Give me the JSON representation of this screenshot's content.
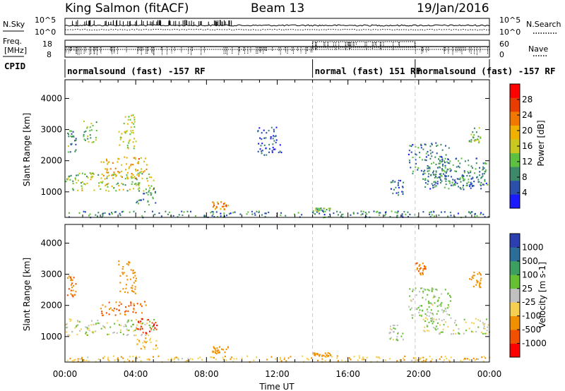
{
  "header": {
    "station": "King Salmon (fitACF)",
    "beam": "Beam 13",
    "date": "19/Jan/2016"
  },
  "noise_panel": {
    "left_label": "N.Sky",
    "right_label": "N.Search",
    "left_ticks": [
      "10^5",
      "10^0"
    ],
    "right_ticks": [
      "10^5",
      "10^0"
    ]
  },
  "freq_panel": {
    "left_label_1": "Freq.",
    "left_label_2": "[MHz]",
    "right_label": "Nave",
    "left_ticks": [
      "18",
      "8"
    ],
    "right_ticks": [
      "60",
      "0"
    ]
  },
  "cpid_panel": {
    "label": "CPID",
    "segments": [
      {
        "text": "normalsound (fast) -157 RF",
        "start_hour": 0,
        "end_hour": 14
      },
      {
        "text": "normal (fast) 151 RF",
        "start_hour": 14,
        "end_hour": 19.8
      },
      {
        "text": "normalsound (fast) -157 RF",
        "start_hour": 19.8,
        "end_hour": 24
      }
    ]
  },
  "colors": {
    "power": [
      "#1a1aff",
      "#2b50aa",
      "#3d8a6a",
      "#5dc040",
      "#c8c820",
      "#f0b000",
      "#f07800",
      "#e83c00",
      "#ff0000"
    ],
    "velocity": [
      "#2b3fb0",
      "#2b6e9a",
      "#3da060",
      "#66c033",
      "#c0c0c0",
      "#f5d050",
      "#f09000",
      "#f05000",
      "#ff0000"
    ]
  },
  "chart_data": [
    {
      "type": "heatmap",
      "name": "power",
      "ylabel": "Slant Range [km]",
      "xlabel": "",
      "x_ticks": [
        "00:00",
        "04:00",
        "08:00",
        "12:00",
        "16:00",
        "20:00",
        "00:00"
      ],
      "y_ticks": [
        1000,
        2000,
        3000,
        4000
      ],
      "xlim_hours": [
        0,
        24
      ],
      "ylim": [
        180,
        4600
      ],
      "colorbar_label": "Power [dB]",
      "colorbar_ticks": [
        4,
        8,
        12,
        16,
        20,
        24,
        28
      ],
      "colorbar_range": [
        0,
        32
      ],
      "regions": [
        {
          "t0": 0.0,
          "t1": 5.0,
          "r0": 1050,
          "r1": 1650,
          "v": 14
        },
        {
          "t0": 2.0,
          "t1": 4.6,
          "r0": 1450,
          "r1": 2150,
          "v": 20
        },
        {
          "t0": 0.1,
          "t1": 0.6,
          "r0": 2300,
          "r1": 3000,
          "v": 10
        },
        {
          "t0": 1.0,
          "t1": 1.8,
          "r0": 2600,
          "r1": 3300,
          "v": 12
        },
        {
          "t0": 3.0,
          "t1": 4.0,
          "r0": 2400,
          "r1": 3500,
          "v": 16
        },
        {
          "t0": 4.0,
          "t1": 5.2,
          "r0": 600,
          "r1": 1200,
          "v": 10
        },
        {
          "t0": 8.3,
          "t1": 9.2,
          "r0": 450,
          "r1": 700,
          "v": 22
        },
        {
          "t0": 0.0,
          "t1": 24.0,
          "r0": 200,
          "r1": 400,
          "v": 8
        },
        {
          "t0": 14.0,
          "t1": 15.0,
          "r0": 380,
          "r1": 500,
          "v": 12
        },
        {
          "t0": 18.3,
          "t1": 19.1,
          "r0": 900,
          "r1": 1400,
          "v": 6
        },
        {
          "t0": 19.4,
          "t1": 21.8,
          "r0": 1500,
          "r1": 2600,
          "v": 8
        },
        {
          "t0": 20.2,
          "t1": 24.0,
          "r0": 1100,
          "r1": 1600,
          "v": 7
        },
        {
          "t0": 20.8,
          "t1": 23.8,
          "r0": 1200,
          "r1": 2100,
          "v": 9
        },
        {
          "t0": 22.8,
          "t1": 23.5,
          "r0": 2600,
          "r1": 3100,
          "v": 12
        },
        {
          "t0": 10.8,
          "t1": 12.2,
          "r0": 2200,
          "r1": 3100,
          "v": 6
        }
      ]
    },
    {
      "type": "heatmap",
      "name": "velocity",
      "ylabel": "Slant Range [km]",
      "xlabel": "Time UT",
      "x_ticks": [
        "00:00",
        "04:00",
        "08:00",
        "12:00",
        "16:00",
        "20:00",
        "00:00"
      ],
      "y_ticks": [
        1000,
        2000,
        3000,
        4000
      ],
      "xlim_hours": [
        0,
        24
      ],
      "ylim": [
        180,
        4600
      ],
      "colorbar_label": "Velocity [m s-1]",
      "colorbar_ticks": [
        "1000",
        "500",
        "100",
        "25",
        "-25",
        "-100",
        "-500",
        "-1000"
      ],
      "regions": [
        {
          "t0": 0.0,
          "t1": 5.0,
          "r0": 1050,
          "r1": 1600,
          "v": 0
        },
        {
          "t0": 2.0,
          "t1": 4.6,
          "r0": 1700,
          "r1": 2150,
          "v": -500
        },
        {
          "t0": 4.0,
          "t1": 5.2,
          "r0": 1100,
          "r1": 1600,
          "v": -1000
        },
        {
          "t0": 0.1,
          "t1": 0.6,
          "r0": 2300,
          "r1": 3000,
          "v": -500
        },
        {
          "t0": 3.0,
          "t1": 4.0,
          "r0": 2400,
          "r1": 3500,
          "v": -300
        },
        {
          "t0": 4.0,
          "t1": 5.2,
          "r0": 600,
          "r1": 1000,
          "v": -100
        },
        {
          "t0": 8.3,
          "t1": 9.2,
          "r0": 450,
          "r1": 700,
          "v": -200
        },
        {
          "t0": 0.0,
          "t1": 24.0,
          "r0": 200,
          "r1": 400,
          "v": -80
        },
        {
          "t0": 14.0,
          "t1": 15.0,
          "r0": 380,
          "r1": 500,
          "v": -300
        },
        {
          "t0": 18.3,
          "t1": 19.1,
          "r0": 900,
          "r1": 1400,
          "v": 10
        },
        {
          "t0": 19.4,
          "t1": 21.8,
          "r0": 1500,
          "r1": 2600,
          "v": 30
        },
        {
          "t0": 20.2,
          "t1": 24.0,
          "r0": 1100,
          "r1": 1600,
          "v": 0
        },
        {
          "t0": 22.8,
          "t1": 23.5,
          "r0": 2600,
          "r1": 3100,
          "v": -400
        },
        {
          "t0": 19.8,
          "t1": 20.4,
          "r0": 3000,
          "r1": 3400,
          "v": -500
        }
      ]
    }
  ]
}
